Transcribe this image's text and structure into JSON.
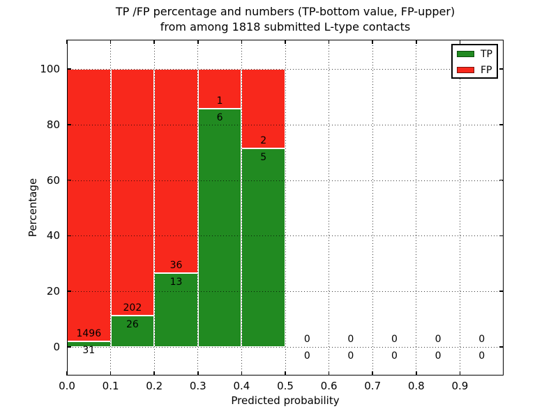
{
  "chart_data": {
    "type": "bar",
    "stacked": true,
    "title_lines": [
      "TP /FP percentage and numbers (TP-bottom value, FP-upper)",
      "from among 1818 submitted L-type contacts"
    ],
    "xlabel": "Predicted probability",
    "ylabel": "Percentage",
    "xlim": [
      0.0,
      1.0
    ],
    "ylim": [
      -10.3,
      110.5
    ],
    "bin_width": 0.1,
    "bin_edges": [
      0.0,
      0.1,
      0.2,
      0.3,
      0.4,
      0.5,
      0.6,
      0.7,
      0.8,
      0.9,
      1.0
    ],
    "xtick_labels": [
      "0.0",
      "0.1",
      "0.2",
      "0.3",
      "0.4",
      "0.5",
      "0.6",
      "0.7",
      "0.8",
      "0.9"
    ],
    "xtick_values": [
      0.0,
      0.1,
      0.2,
      0.3,
      0.4,
      0.5,
      0.6,
      0.7,
      0.8,
      0.9
    ],
    "ytick_values": [
      0,
      20,
      40,
      60,
      80,
      100
    ],
    "grid": "dotted",
    "colors": {
      "tp": "#218a21",
      "fp": "#f8281c",
      "bar_edge": "#ffffff"
    },
    "legend": {
      "position": "upper right",
      "entries": [
        {
          "name": "TP",
          "color": "#218a21"
        },
        {
          "name": "FP",
          "color": "#f8281c"
        }
      ]
    },
    "total_submitted": 1818,
    "series": [
      {
        "name": "TP",
        "counts": [
          31,
          26,
          13,
          6,
          5,
          0,
          0,
          0,
          0,
          0
        ],
        "pct": [
          2.03,
          11.4,
          26.53,
          85.71,
          71.43,
          0,
          0,
          0,
          0,
          0
        ]
      },
      {
        "name": "FP",
        "counts": [
          1496,
          202,
          36,
          1,
          2,
          0,
          0,
          0,
          0,
          0
        ],
        "pct": [
          97.97,
          88.6,
          73.47,
          14.29,
          28.57,
          0,
          0,
          0,
          0,
          0
        ]
      }
    ]
  }
}
